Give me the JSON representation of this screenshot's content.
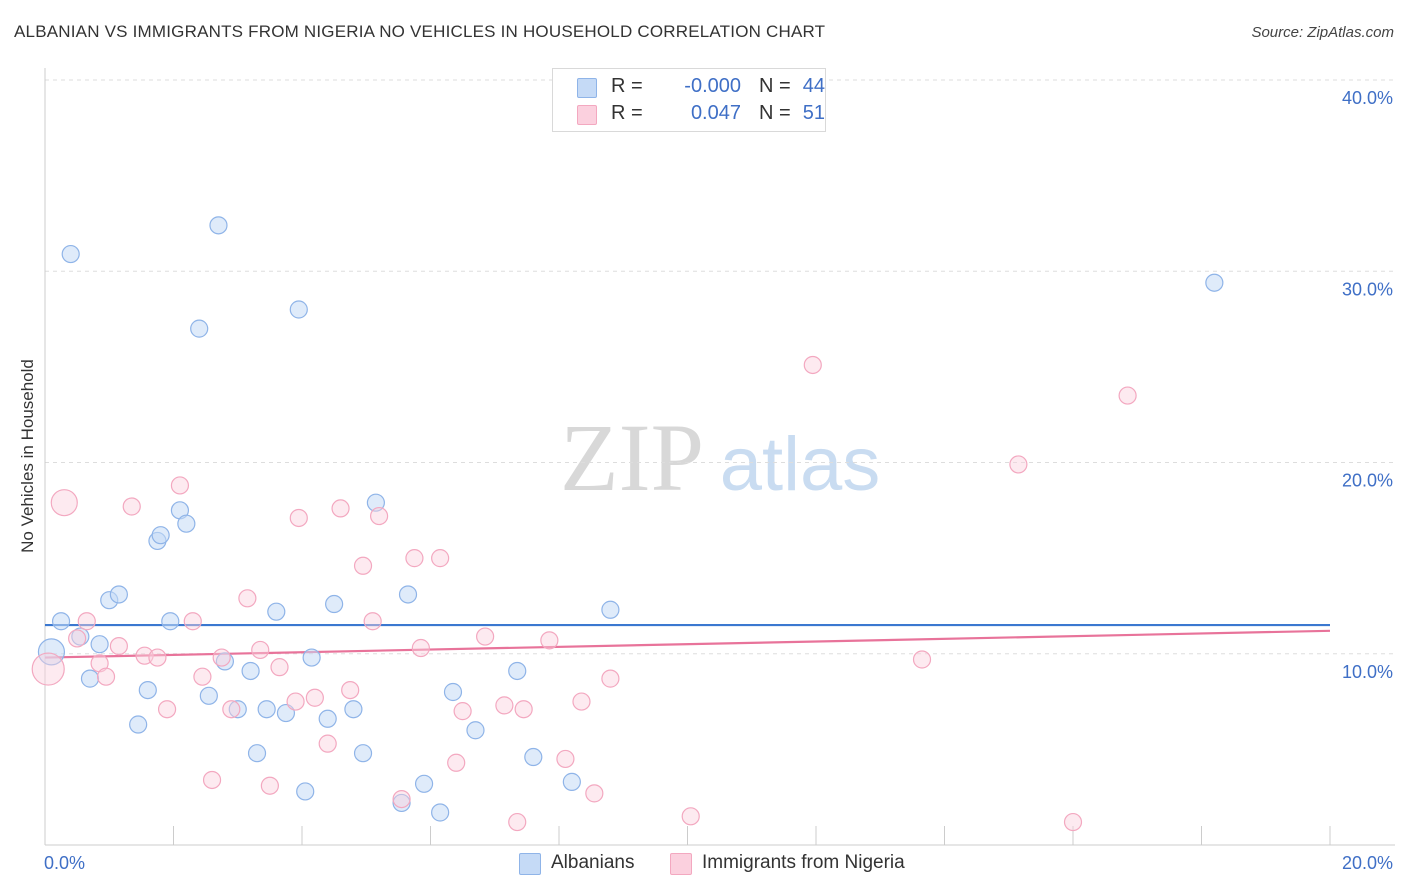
{
  "header": {
    "title": "ALBANIAN VS IMMIGRANTS FROM NIGERIA NO VEHICLES IN HOUSEHOLD CORRELATION CHART",
    "source": "Source: ZipAtlas.com"
  },
  "watermark": {
    "zip": "ZIP",
    "atlas": "atlas"
  },
  "legend": {
    "rows": [
      {
        "r_label": "R =",
        "r_value": "-0.000",
        "n_label": "N =",
        "n_value": "44"
      },
      {
        "r_label": "R =",
        "r_value": "0.047",
        "n_label": "N =",
        "n_value": "51"
      }
    ]
  },
  "bottom_legend": {
    "series_a": "Albanians",
    "series_b": "Immigrants from Nigeria"
  },
  "chart_data": {
    "type": "scatter",
    "title": "ALBANIAN VS IMMIGRANTS FROM NIGERIA NO VEHICLES IN HOUSEHOLD CORRELATION CHART",
    "xlabel": "",
    "ylabel": "No Vehicles in Household",
    "xlim": [
      0,
      20
    ],
    "ylim": [
      0,
      40
    ],
    "x_tick_labels": [
      "0.0%",
      "20.0%"
    ],
    "y_tick_labels": [
      "10.0%",
      "20.0%",
      "30.0%",
      "40.0%"
    ],
    "y_ticks": [
      10,
      20,
      30,
      40
    ],
    "grid": true,
    "legend_position": "top-center",
    "colors": {
      "albanians": "#8fb4e8",
      "albanians_line": "#3b78d0",
      "nigeria": "#f3a8c0",
      "nigeria_line": "#e8739a",
      "tick_text": "#3f6fc6"
    },
    "series": [
      {
        "name": "Albanians",
        "r": -0.0,
        "n": 44,
        "trend": [
          [
            0,
            11.5
          ],
          [
            20,
            11.5
          ]
        ],
        "points": [
          [
            0.1,
            10.1,
            2
          ],
          [
            0.25,
            11.7,
            1
          ],
          [
            0.4,
            30.9,
            1
          ],
          [
            0.55,
            10.9,
            1
          ],
          [
            0.7,
            8.7,
            1
          ],
          [
            0.85,
            10.5,
            1
          ],
          [
            1.0,
            12.8,
            1
          ],
          [
            1.15,
            13.1,
            1
          ],
          [
            1.45,
            6.3,
            1
          ],
          [
            1.6,
            8.1,
            1
          ],
          [
            1.75,
            15.9,
            1
          ],
          [
            1.8,
            16.2,
            1
          ],
          [
            1.95,
            11.7,
            1
          ],
          [
            2.1,
            17.5,
            1
          ],
          [
            2.2,
            16.8,
            1
          ],
          [
            2.4,
            27.0,
            1
          ],
          [
            2.55,
            7.8,
            1
          ],
          [
            2.7,
            32.4,
            1
          ],
          [
            2.8,
            9.6,
            1
          ],
          [
            3.0,
            7.1,
            1
          ],
          [
            3.2,
            9.1,
            1
          ],
          [
            3.3,
            4.8,
            1
          ],
          [
            3.45,
            7.1,
            1
          ],
          [
            3.6,
            12.2,
            1
          ],
          [
            3.75,
            6.9,
            1
          ],
          [
            3.95,
            28.0,
            1
          ],
          [
            4.05,
            2.8,
            1
          ],
          [
            4.15,
            9.8,
            1
          ],
          [
            4.4,
            6.6,
            1
          ],
          [
            4.5,
            12.6,
            1
          ],
          [
            4.8,
            7.1,
            1
          ],
          [
            4.95,
            4.8,
            1
          ],
          [
            5.15,
            17.9,
            1
          ],
          [
            5.55,
            2.2,
            1
          ],
          [
            5.65,
            13.1,
            1
          ],
          [
            5.9,
            3.2,
            1
          ],
          [
            6.15,
            1.7,
            1
          ],
          [
            6.35,
            8.0,
            1
          ],
          [
            6.7,
            6.0,
            1
          ],
          [
            7.35,
            9.1,
            1
          ],
          [
            7.6,
            4.6,
            1
          ],
          [
            8.2,
            3.3,
            1
          ],
          [
            8.8,
            12.3,
            1
          ],
          [
            18.2,
            29.4,
            1
          ]
        ]
      },
      {
        "name": "Immigrants from Nigeria",
        "r": 0.047,
        "n": 51,
        "trend": [
          [
            0,
            9.8
          ],
          [
            20,
            11.2
          ]
        ],
        "points": [
          [
            0.05,
            9.2,
            3
          ],
          [
            0.3,
            17.9,
            2
          ],
          [
            0.5,
            10.8,
            1
          ],
          [
            0.65,
            11.7,
            1
          ],
          [
            0.85,
            9.5,
            1
          ],
          [
            0.95,
            8.8,
            1
          ],
          [
            1.15,
            10.4,
            1
          ],
          [
            1.35,
            17.7,
            1
          ],
          [
            1.55,
            9.9,
            1
          ],
          [
            1.75,
            9.8,
            1
          ],
          [
            1.9,
            7.1,
            1
          ],
          [
            2.1,
            18.8,
            1
          ],
          [
            2.3,
            11.7,
            1
          ],
          [
            2.45,
            8.8,
            1
          ],
          [
            2.6,
            3.4,
            1
          ],
          [
            2.75,
            9.8,
            1
          ],
          [
            2.9,
            7.1,
            1
          ],
          [
            3.15,
            12.9,
            1
          ],
          [
            3.35,
            10.2,
            1
          ],
          [
            3.5,
            3.1,
            1
          ],
          [
            3.65,
            9.3,
            1
          ],
          [
            3.9,
            7.5,
            1
          ],
          [
            3.95,
            17.1,
            1
          ],
          [
            4.2,
            7.7,
            1
          ],
          [
            4.4,
            5.3,
            1
          ],
          [
            4.6,
            17.6,
            1
          ],
          [
            4.75,
            8.1,
            1
          ],
          [
            4.95,
            14.6,
            1
          ],
          [
            5.1,
            11.7,
            1
          ],
          [
            5.2,
            17.2,
            1
          ],
          [
            5.55,
            2.4,
            1
          ],
          [
            5.75,
            15.0,
            1
          ],
          [
            5.85,
            10.3,
            1
          ],
          [
            6.15,
            15.0,
            1
          ],
          [
            6.4,
            4.3,
            1
          ],
          [
            6.5,
            7.0,
            1
          ],
          [
            6.85,
            10.9,
            1
          ],
          [
            7.15,
            7.3,
            1
          ],
          [
            7.35,
            1.2,
            1
          ],
          [
            7.45,
            7.1,
            1
          ],
          [
            7.85,
            10.7,
            1
          ],
          [
            8.1,
            4.5,
            1
          ],
          [
            8.35,
            7.5,
            1
          ],
          [
            8.55,
            2.7,
            1
          ],
          [
            8.8,
            8.7,
            1
          ],
          [
            10.05,
            1.5,
            1
          ],
          [
            11.95,
            25.1,
            1
          ],
          [
            13.65,
            9.7,
            1
          ],
          [
            15.15,
            19.9,
            1
          ],
          [
            16.0,
            1.2,
            1
          ],
          [
            16.85,
            23.5,
            1
          ]
        ]
      }
    ]
  }
}
